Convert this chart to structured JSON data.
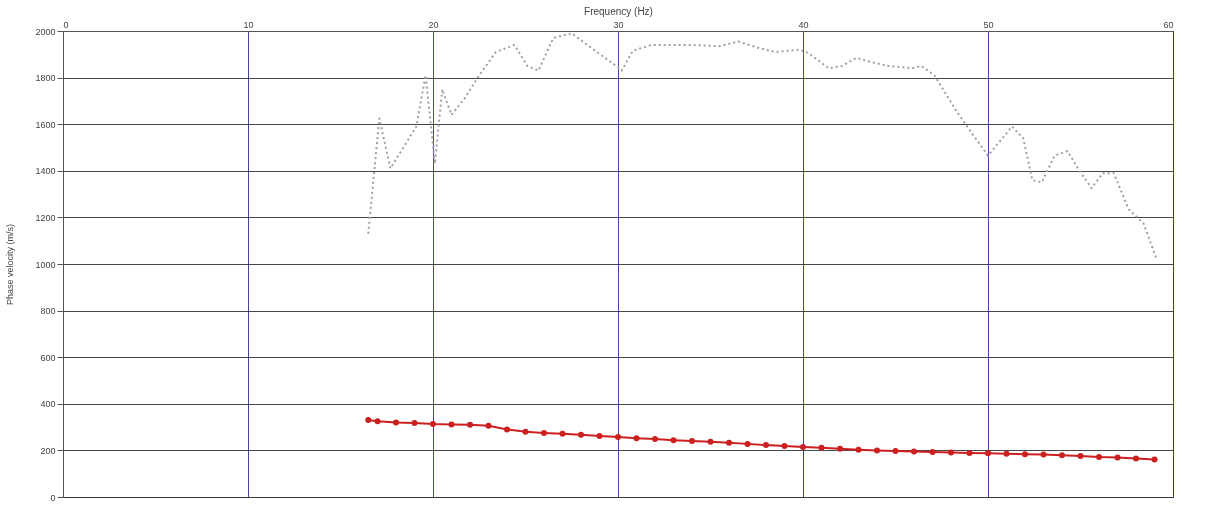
{
  "chart_data": {
    "type": "line",
    "xlabel": "Frequency (Hz)",
    "ylabel": "Phase velocity (m/s)",
    "xlim": [
      0,
      60
    ],
    "xticks": [
      0,
      10,
      20,
      30,
      40,
      50,
      60
    ],
    "ylim": [
      0,
      2000
    ],
    "yticks": [
      0,
      200,
      400,
      600,
      800,
      1000,
      1200,
      1400,
      1600,
      1800,
      2000
    ],
    "grid": true,
    "series": [
      {
        "color": "#a0a0a0",
        "line_style": "dotted",
        "marker": "none",
        "x": [
          16.5,
          17.1,
          17.7,
          19.1,
          19.6,
          20.0,
          20.1,
          20.5,
          21.0,
          21.7,
          22.5,
          23.4,
          24.4,
          25.1,
          25.7,
          26.5,
          27.5,
          28.6,
          29.9,
          30.2,
          30.8,
          31.8,
          34.0,
          35.5,
          36.5,
          37.7,
          38.5,
          39.8,
          40.3,
          41.4,
          42.1,
          42.9,
          43.5,
          44.6,
          45.9,
          46.4,
          47.1,
          48.3,
          49.1,
          50.0,
          51.3,
          51.9,
          52.4,
          52.9,
          53.6,
          54.3,
          54.9,
          55.6,
          56.2,
          56.8,
          57.6,
          58.4,
          59.1
        ],
        "values": [
          1130,
          1625,
          1410,
          1590,
          1810,
          1510,
          1430,
          1750,
          1640,
          1710,
          1810,
          1910,
          1940,
          1850,
          1830,
          1970,
          1990,
          1925,
          1850,
          1830,
          1915,
          1940,
          1940,
          1935,
          1955,
          1925,
          1910,
          1920,
          1905,
          1840,
          1850,
          1885,
          1870,
          1850,
          1840,
          1850,
          1810,
          1655,
          1565,
          1465,
          1590,
          1540,
          1360,
          1350,
          1465,
          1485,
          1405,
          1325,
          1390,
          1390,
          1235,
          1175,
          1025
        ]
      },
      {
        "color": "#cc2020",
        "line_style": "solid",
        "marker": "circle",
        "x": [
          16.5,
          17,
          18,
          19,
          20,
          21,
          22,
          23,
          24,
          25,
          26,
          27,
          28,
          29,
          30,
          31,
          32,
          33,
          34,
          35,
          36,
          37,
          38,
          39,
          40,
          41,
          42,
          43,
          44,
          45,
          46,
          47,
          48,
          49,
          50,
          51,
          52,
          53,
          54,
          55,
          56,
          57,
          58,
          59
        ],
        "values": [
          330,
          325,
          320,
          318,
          313,
          311,
          310,
          306,
          290,
          280,
          275,
          271,
          267,
          262,
          257,
          252,
          249,
          244,
          240,
          237,
          233,
          228,
          223,
          219,
          215,
          211,
          207,
          203,
          200,
          197,
          195,
          193,
          191,
          189,
          188,
          186,
          184,
          182,
          179,
          176,
          172,
          170,
          165,
          161
        ]
      }
    ]
  }
}
